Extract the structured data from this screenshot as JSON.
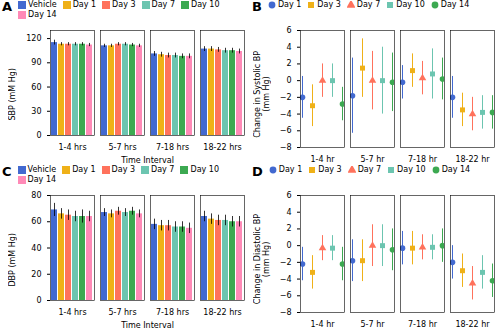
{
  "chart_data": [
    {
      "type": "bar",
      "title": "A",
      "xlabel": "Time Interval",
      "ylabel": "SBP (mM Hg)",
      "categories": [
        "1-4 hrs",
        "5-7 hrs",
        "7-18 hrs",
        "18-22 hrs"
      ],
      "series": [
        {
          "name": "Vehicle",
          "values": [
            115,
            111,
            101,
            107
          ],
          "errors": [
            3,
            2,
            3,
            3
          ]
        },
        {
          "name": "Day 1",
          "values": [
            113,
            111,
            100,
            107
          ],
          "errors": [
            2,
            2,
            3,
            3
          ]
        },
        {
          "name": "Day 3",
          "values": [
            113,
            113,
            99,
            106
          ],
          "errors": [
            2,
            2,
            3,
            3
          ]
        },
        {
          "name": "Day 7",
          "values": [
            113,
            113,
            99,
            105
          ],
          "errors": [
            2,
            2,
            3,
            3
          ]
        },
        {
          "name": "Day 10",
          "values": [
            113,
            112,
            98,
            105
          ],
          "errors": [
            2,
            2,
            3,
            3
          ]
        },
        {
          "name": "Day 14",
          "values": [
            112,
            111,
            98,
            104
          ],
          "errors": [
            2,
            2,
            3,
            3
          ]
        }
      ],
      "ylim": [
        0,
        130
      ],
      "yticks": [
        0,
        30,
        60,
        90,
        120
      ]
    },
    {
      "type": "scatter",
      "title": "B",
      "ylabel": "Change in Systolic BP\n(mm Hg)",
      "categories": [
        "1-4 hr",
        "5-7 hr",
        "7-18 hr",
        "18-22 hr"
      ],
      "series": [
        {
          "name": "Day 1",
          "marker": "circle",
          "values": [
            -2.0,
            -1.8,
            -0.2,
            -2.0
          ],
          "errors": [
            2.5,
            4.5,
            2.0,
            2.5
          ]
        },
        {
          "name": "Day 3",
          "marker": "square",
          "values": [
            -3.0,
            1.5,
            1.2,
            -3.5
          ],
          "errors": [
            2.5,
            3.5,
            2.0,
            2.0
          ]
        },
        {
          "name": "Day 7",
          "marker": "triangle",
          "values": [
            0.0,
            0.0,
            0.3,
            -4.0
          ],
          "errors": [
            2.0,
            3.5,
            2.0,
            2.0
          ]
        },
        {
          "name": "Day 10",
          "marker": "square",
          "values": [
            0.0,
            0.0,
            0.8,
            -3.8
          ],
          "errors": [
            2.0,
            4.0,
            3.0,
            2.0
          ]
        },
        {
          "name": "Day 14",
          "marker": "circle",
          "values": [
            -2.8,
            -0.2,
            0.2,
            -3.8
          ],
          "errors": [
            2.0,
            3.5,
            2.5,
            2.0
          ]
        }
      ],
      "ylim": [
        -8,
        6
      ],
      "yticks": [
        -8,
        -6,
        -4,
        -2,
        0,
        2,
        4,
        6
      ]
    },
    {
      "type": "bar",
      "title": "C",
      "xlabel": "Time Interval",
      "ylabel": "DBP (mM Hg)",
      "categories": [
        "1-4 hrs",
        "5-7 hrs",
        "7-18 hrs",
        "18-22 hrs"
      ],
      "series": [
        {
          "name": "Vehicle",
          "values": [
            69,
            67,
            58,
            64
          ],
          "errors": [
            5,
            3,
            4,
            4
          ]
        },
        {
          "name": "Day 1",
          "values": [
            66,
            66,
            57,
            62
          ],
          "errors": [
            4,
            3,
            4,
            4
          ]
        },
        {
          "name": "Day 3",
          "values": [
            65,
            68,
            57,
            61
          ],
          "errors": [
            4,
            3,
            4,
            4
          ]
        },
        {
          "name": "Day 7",
          "values": [
            64,
            67,
            56,
            61
          ],
          "errors": [
            4,
            3,
            4,
            4
          ]
        },
        {
          "name": "Day 10",
          "values": [
            64,
            68,
            56,
            60
          ],
          "errors": [
            5,
            3,
            4,
            4
          ]
        },
        {
          "name": "Day 14",
          "values": [
            64,
            66,
            55,
            60
          ],
          "errors": [
            4,
            3,
            4,
            4
          ]
        }
      ],
      "ylim": [
        0,
        80
      ],
      "yticks": [
        0,
        20,
        40,
        60,
        80
      ]
    },
    {
      "type": "scatter",
      "title": "D",
      "ylabel": "Change in Diastolic BP\n(mm Hg)",
      "categories": [
        "1-4 hr",
        "5-7 hr",
        "7-18 hr",
        "18-22 hr"
      ],
      "series": [
        {
          "name": "Day 1",
          "marker": "circle",
          "values": [
            -2.2,
            -1.8,
            -0.3,
            -2.0
          ],
          "errors": [
            2.0,
            2.5,
            2.0,
            2.0
          ]
        },
        {
          "name": "Day 3",
          "marker": "square",
          "values": [
            -3.2,
            -1.8,
            -0.3,
            -3.0
          ],
          "errors": [
            2.0,
            2.5,
            2.0,
            2.0
          ]
        },
        {
          "name": "Day 7",
          "marker": "triangle",
          "values": [
            -0.3,
            0.0,
            -0.2,
            -4.5
          ],
          "errors": [
            1.5,
            2.5,
            1.5,
            2.0
          ]
        },
        {
          "name": "Day 10",
          "marker": "square",
          "values": [
            -0.3,
            0.0,
            -0.2,
            -3.2
          ],
          "errors": [
            1.5,
            2.5,
            1.5,
            2.0
          ]
        },
        {
          "name": "Day 14",
          "marker": "circle",
          "values": [
            -2.2,
            -0.5,
            0.0,
            -4.2
          ],
          "errors": [
            2.0,
            2.5,
            2.0,
            2.0
          ]
        }
      ],
      "ylim": [
        -8,
        6
      ],
      "yticks": [
        -8,
        -6,
        -4,
        -2,
        0,
        2,
        4,
        6
      ]
    }
  ]
}
